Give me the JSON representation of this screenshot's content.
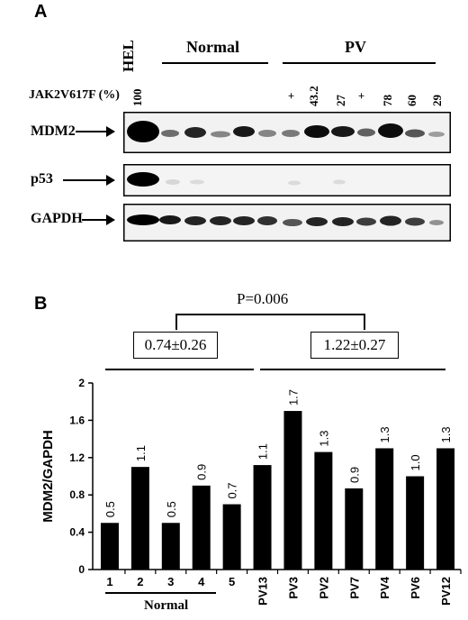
{
  "panel_a": {
    "letter": "A",
    "hel_label": "HEL",
    "normal_label": "Normal",
    "pv_label": "PV",
    "jak_label": "JAK2V617F (%)",
    "jak_values": [
      "100",
      "+",
      "43.2",
      "27",
      "+",
      "78",
      "60",
      "29"
    ],
    "blots": [
      {
        "label": "MDM2"
      },
      {
        "label": "p53"
      },
      {
        "label": "GAPDH"
      }
    ]
  },
  "panel_b": {
    "letter": "B",
    "p_value": "P=0.006",
    "normal_mean": "0.74±0.26",
    "pv_mean": "1.22±0.27",
    "normal_group_label": "Normal"
  },
  "chart_data": {
    "type": "bar",
    "ylabel": "MDM2/GAPDH",
    "ylim": [
      0,
      2
    ],
    "yticks": [
      "0",
      "0.4",
      "0.8",
      "1.2",
      "1.6",
      "2"
    ],
    "categories": [
      "1",
      "2",
      "3",
      "4",
      "5",
      "PV13",
      "PV3",
      "PV2",
      "PV7",
      "PV4",
      "PV6",
      "PV12"
    ],
    "values": [
      0.5,
      1.1,
      0.5,
      0.9,
      0.7,
      1.12,
      1.7,
      1.26,
      0.87,
      1.3,
      1.0,
      1.3
    ],
    "data_labels": [
      "0.5",
      "1.1",
      "0.5",
      "0.9",
      "0.7",
      "1.1",
      "1.7",
      "1.3",
      "0.9",
      "1.3",
      "1.0",
      "1.3"
    ],
    "bar_color": "#000000"
  }
}
